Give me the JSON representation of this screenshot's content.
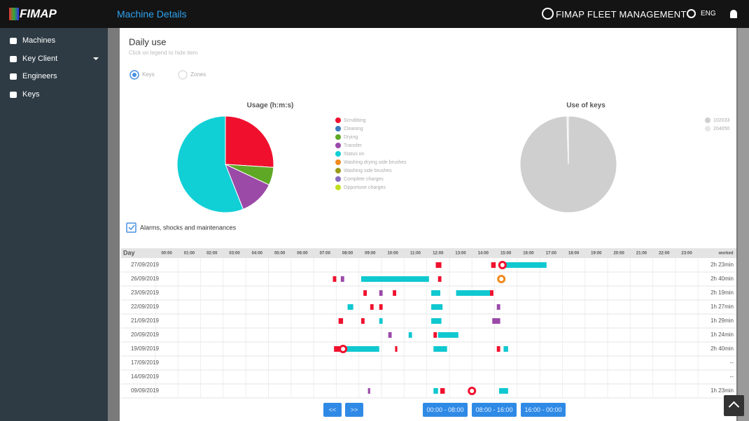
{
  "header": {
    "logo": "FIMAP",
    "page_title": "Machine Details",
    "brand": "FIMAP FLEET MANAGEMENT",
    "language": "ENG"
  },
  "sidebar": {
    "items": [
      "Machines",
      "Key Client",
      "Engineers",
      "Keys"
    ]
  },
  "card": {
    "title": "Daily use",
    "hint": "Click on legend to hide item",
    "radio": [
      "Keys",
      "Zones"
    ],
    "checkbox": "Alarms, shocks and maintenances"
  },
  "chart_data": [
    {
      "type": "pie",
      "title": "Usage (h:m:s)",
      "categories": [
        "Scrubbing",
        "Cleaning",
        "Drying",
        "Transfer",
        "Status on",
        "Washing drying side brushes",
        "Washing side brushes",
        "Complete charges",
        "Opportune charges"
      ],
      "values": [
        26,
        0,
        6,
        12,
        56,
        0,
        0,
        0,
        0
      ],
      "colors": [
        "#f0102e",
        "#3a7bbf",
        "#5fa825",
        "#9b4aa8",
        "#10d0d6",
        "#f08a1c",
        "#9a9a18",
        "#8a6ac0",
        "#c0e020"
      ]
    },
    {
      "type": "pie",
      "title": "Use of keys",
      "categories": [
        "102033",
        "204050"
      ],
      "values": [
        99.5,
        0.5
      ],
      "colors": [
        "#cfcfcf",
        "#e6e6e6"
      ]
    }
  ],
  "table": {
    "columns": [
      "Day",
      "00:00",
      "01:00",
      "02:00",
      "03:00",
      "04:00",
      "05:00",
      "06:00",
      "07:00",
      "08:00",
      "09:00",
      "10:00",
      "11:00",
      "12:00",
      "13:00",
      "14:00",
      "15:00",
      "16:00",
      "17:00",
      "18:00",
      "19:00",
      "20:00",
      "21:00",
      "22:00",
      "23:00",
      "worked"
    ],
    "rows": [
      {
        "day": "27/09/2019",
        "total": "2h 23min",
        "segments": [
          {
            "start": 12.4,
            "end": 12.65,
            "color": "#f0102e"
          },
          {
            "start": 14.85,
            "end": 15.05,
            "color": "#f0102e"
          },
          {
            "start": 15.5,
            "end": 17.3,
            "color": "#10c8d0"
          }
        ],
        "alarms": [
          {
            "time": 15.35,
            "color": "#f0102e"
          }
        ]
      },
      {
        "day": "26/09/2019",
        "total": "2h 40min",
        "segments": [
          {
            "start": 7.85,
            "end": 8.0,
            "color": "#f0102e"
          },
          {
            "start": 8.2,
            "end": 8.35,
            "color": "#9b4aa8"
          },
          {
            "start": 9.1,
            "end": 12.1,
            "color": "#10c8d0"
          },
          {
            "start": 12.5,
            "end": 12.65,
            "color": "#f0102e"
          }
        ],
        "alarms": [
          {
            "time": 15.3,
            "color": "#f08a1c"
          }
        ]
      },
      {
        "day": "23/09/2019",
        "total": "2h 19min",
        "segments": [
          {
            "start": 9.2,
            "end": 9.35,
            "color": "#f0102e"
          },
          {
            "start": 9.9,
            "end": 10.05,
            "color": "#9b4aa8"
          },
          {
            "start": 10.5,
            "end": 10.65,
            "color": "#f0102e"
          },
          {
            "start": 12.2,
            "end": 12.6,
            "color": "#10c8d0"
          },
          {
            "start": 13.3,
            "end": 14.8,
            "color": "#10c8d0"
          },
          {
            "start": 14.8,
            "end": 14.95,
            "color": "#f0102e"
          }
        ],
        "alarms": []
      },
      {
        "day": "22/09/2019",
        "total": "1h 27min",
        "segments": [
          {
            "start": 8.5,
            "end": 8.75,
            "color": "#10c8d0"
          },
          {
            "start": 9.5,
            "end": 9.65,
            "color": "#f0102e"
          },
          {
            "start": 9.9,
            "end": 10.05,
            "color": "#f0102e"
          },
          {
            "start": 12.2,
            "end": 12.7,
            "color": "#10c8d0"
          },
          {
            "start": 15.1,
            "end": 15.25,
            "color": "#9b4aa8"
          }
        ],
        "alarms": []
      },
      {
        "day": "21/09/2019",
        "total": "1h 29min",
        "segments": [
          {
            "start": 8.1,
            "end": 8.3,
            "color": "#f0102e"
          },
          {
            "start": 9.1,
            "end": 9.25,
            "color": "#f0102e"
          },
          {
            "start": 9.9,
            "end": 10.05,
            "color": "#10c8d0"
          },
          {
            "start": 12.2,
            "end": 12.65,
            "color": "#10c8d0"
          },
          {
            "start": 14.9,
            "end": 15.25,
            "color": "#9b4aa8"
          }
        ],
        "alarms": []
      },
      {
        "day": "20/09/2019",
        "total": "1h 24min",
        "segments": [
          {
            "start": 10.3,
            "end": 10.45,
            "color": "#9b4aa8"
          },
          {
            "start": 11.2,
            "end": 11.35,
            "color": "#10c8d0"
          },
          {
            "start": 12.3,
            "end": 12.45,
            "color": "#f0102e"
          },
          {
            "start": 12.5,
            "end": 13.4,
            "color": "#10c8d0"
          }
        ],
        "alarms": []
      },
      {
        "day": "19/09/2019",
        "total": "2h 40min",
        "segments": [
          {
            "start": 7.9,
            "end": 8.15,
            "color": "#f0102e"
          },
          {
            "start": 8.45,
            "end": 9.9,
            "color": "#10c8d0"
          },
          {
            "start": 10.6,
            "end": 10.7,
            "color": "#f0102e"
          },
          {
            "start": 12.3,
            "end": 12.9,
            "color": "#10c8d0"
          },
          {
            "start": 15.1,
            "end": 15.25,
            "color": "#f0102e"
          },
          {
            "start": 15.4,
            "end": 15.6,
            "color": "#10c8d0"
          }
        ],
        "alarms": [
          {
            "time": 8.3,
            "color": "#f0102e"
          }
        ]
      },
      {
        "day": "17/09/2019",
        "total": "--",
        "segments": [],
        "alarms": []
      },
      {
        "day": "14/09/2019",
        "total": "--",
        "segments": [],
        "alarms": []
      },
      {
        "day": "09/09/2019",
        "total": "1h 23min",
        "segments": [
          {
            "start": 9.4,
            "end": 9.5,
            "color": "#9b4aa8"
          },
          {
            "start": 12.3,
            "end": 12.5,
            "color": "#10c8d0"
          },
          {
            "start": 12.6,
            "end": 12.8,
            "color": "#f0102e"
          },
          {
            "start": 15.2,
            "end": 15.6,
            "color": "#10c8d0"
          }
        ],
        "alarms": [
          {
            "time": 14.0,
            "color": "#f0102e"
          }
        ]
      }
    ]
  },
  "pager": {
    "buttons": [
      "<<",
      ">>",
      "00:00 - 08:00",
      "08:00 - 16:00",
      "16:00 - 00:00"
    ]
  }
}
